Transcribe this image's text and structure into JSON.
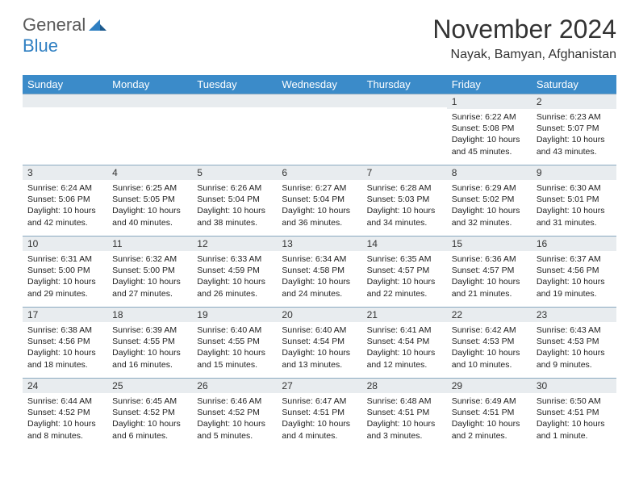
{
  "brand": {
    "general": "General",
    "blue": "Blue"
  },
  "title": "November 2024",
  "location": "Nayak, Bamyan, Afghanistan",
  "colors": {
    "header_bg": "#3b8bc9",
    "daynum_bg": "#e8ecef",
    "row_border": "#8aa9c0",
    "brand_blue": "#2f7fc2",
    "brand_gray": "#5a5a5a"
  },
  "dow": [
    "Sunday",
    "Monday",
    "Tuesday",
    "Wednesday",
    "Thursday",
    "Friday",
    "Saturday"
  ],
  "weeks": [
    [
      {
        "n": "",
        "sr": "",
        "ss": "",
        "dl": ""
      },
      {
        "n": "",
        "sr": "",
        "ss": "",
        "dl": ""
      },
      {
        "n": "",
        "sr": "",
        "ss": "",
        "dl": ""
      },
      {
        "n": "",
        "sr": "",
        "ss": "",
        "dl": ""
      },
      {
        "n": "",
        "sr": "",
        "ss": "",
        "dl": ""
      },
      {
        "n": "1",
        "sr": "Sunrise: 6:22 AM",
        "ss": "Sunset: 5:08 PM",
        "dl": "Daylight: 10 hours and 45 minutes."
      },
      {
        "n": "2",
        "sr": "Sunrise: 6:23 AM",
        "ss": "Sunset: 5:07 PM",
        "dl": "Daylight: 10 hours and 43 minutes."
      }
    ],
    [
      {
        "n": "3",
        "sr": "Sunrise: 6:24 AM",
        "ss": "Sunset: 5:06 PM",
        "dl": "Daylight: 10 hours and 42 minutes."
      },
      {
        "n": "4",
        "sr": "Sunrise: 6:25 AM",
        "ss": "Sunset: 5:05 PM",
        "dl": "Daylight: 10 hours and 40 minutes."
      },
      {
        "n": "5",
        "sr": "Sunrise: 6:26 AM",
        "ss": "Sunset: 5:04 PM",
        "dl": "Daylight: 10 hours and 38 minutes."
      },
      {
        "n": "6",
        "sr": "Sunrise: 6:27 AM",
        "ss": "Sunset: 5:04 PM",
        "dl": "Daylight: 10 hours and 36 minutes."
      },
      {
        "n": "7",
        "sr": "Sunrise: 6:28 AM",
        "ss": "Sunset: 5:03 PM",
        "dl": "Daylight: 10 hours and 34 minutes."
      },
      {
        "n": "8",
        "sr": "Sunrise: 6:29 AM",
        "ss": "Sunset: 5:02 PM",
        "dl": "Daylight: 10 hours and 32 minutes."
      },
      {
        "n": "9",
        "sr": "Sunrise: 6:30 AM",
        "ss": "Sunset: 5:01 PM",
        "dl": "Daylight: 10 hours and 31 minutes."
      }
    ],
    [
      {
        "n": "10",
        "sr": "Sunrise: 6:31 AM",
        "ss": "Sunset: 5:00 PM",
        "dl": "Daylight: 10 hours and 29 minutes."
      },
      {
        "n": "11",
        "sr": "Sunrise: 6:32 AM",
        "ss": "Sunset: 5:00 PM",
        "dl": "Daylight: 10 hours and 27 minutes."
      },
      {
        "n": "12",
        "sr": "Sunrise: 6:33 AM",
        "ss": "Sunset: 4:59 PM",
        "dl": "Daylight: 10 hours and 26 minutes."
      },
      {
        "n": "13",
        "sr": "Sunrise: 6:34 AM",
        "ss": "Sunset: 4:58 PM",
        "dl": "Daylight: 10 hours and 24 minutes."
      },
      {
        "n": "14",
        "sr": "Sunrise: 6:35 AM",
        "ss": "Sunset: 4:57 PM",
        "dl": "Daylight: 10 hours and 22 minutes."
      },
      {
        "n": "15",
        "sr": "Sunrise: 6:36 AM",
        "ss": "Sunset: 4:57 PM",
        "dl": "Daylight: 10 hours and 21 minutes."
      },
      {
        "n": "16",
        "sr": "Sunrise: 6:37 AM",
        "ss": "Sunset: 4:56 PM",
        "dl": "Daylight: 10 hours and 19 minutes."
      }
    ],
    [
      {
        "n": "17",
        "sr": "Sunrise: 6:38 AM",
        "ss": "Sunset: 4:56 PM",
        "dl": "Daylight: 10 hours and 18 minutes."
      },
      {
        "n": "18",
        "sr": "Sunrise: 6:39 AM",
        "ss": "Sunset: 4:55 PM",
        "dl": "Daylight: 10 hours and 16 minutes."
      },
      {
        "n": "19",
        "sr": "Sunrise: 6:40 AM",
        "ss": "Sunset: 4:55 PM",
        "dl": "Daylight: 10 hours and 15 minutes."
      },
      {
        "n": "20",
        "sr": "Sunrise: 6:40 AM",
        "ss": "Sunset: 4:54 PM",
        "dl": "Daylight: 10 hours and 13 minutes."
      },
      {
        "n": "21",
        "sr": "Sunrise: 6:41 AM",
        "ss": "Sunset: 4:54 PM",
        "dl": "Daylight: 10 hours and 12 minutes."
      },
      {
        "n": "22",
        "sr": "Sunrise: 6:42 AM",
        "ss": "Sunset: 4:53 PM",
        "dl": "Daylight: 10 hours and 10 minutes."
      },
      {
        "n": "23",
        "sr": "Sunrise: 6:43 AM",
        "ss": "Sunset: 4:53 PM",
        "dl": "Daylight: 10 hours and 9 minutes."
      }
    ],
    [
      {
        "n": "24",
        "sr": "Sunrise: 6:44 AM",
        "ss": "Sunset: 4:52 PM",
        "dl": "Daylight: 10 hours and 8 minutes."
      },
      {
        "n": "25",
        "sr": "Sunrise: 6:45 AM",
        "ss": "Sunset: 4:52 PM",
        "dl": "Daylight: 10 hours and 6 minutes."
      },
      {
        "n": "26",
        "sr": "Sunrise: 6:46 AM",
        "ss": "Sunset: 4:52 PM",
        "dl": "Daylight: 10 hours and 5 minutes."
      },
      {
        "n": "27",
        "sr": "Sunrise: 6:47 AM",
        "ss": "Sunset: 4:51 PM",
        "dl": "Daylight: 10 hours and 4 minutes."
      },
      {
        "n": "28",
        "sr": "Sunrise: 6:48 AM",
        "ss": "Sunset: 4:51 PM",
        "dl": "Daylight: 10 hours and 3 minutes."
      },
      {
        "n": "29",
        "sr": "Sunrise: 6:49 AM",
        "ss": "Sunset: 4:51 PM",
        "dl": "Daylight: 10 hours and 2 minutes."
      },
      {
        "n": "30",
        "sr": "Sunrise: 6:50 AM",
        "ss": "Sunset: 4:51 PM",
        "dl": "Daylight: 10 hours and 1 minute."
      }
    ]
  ]
}
